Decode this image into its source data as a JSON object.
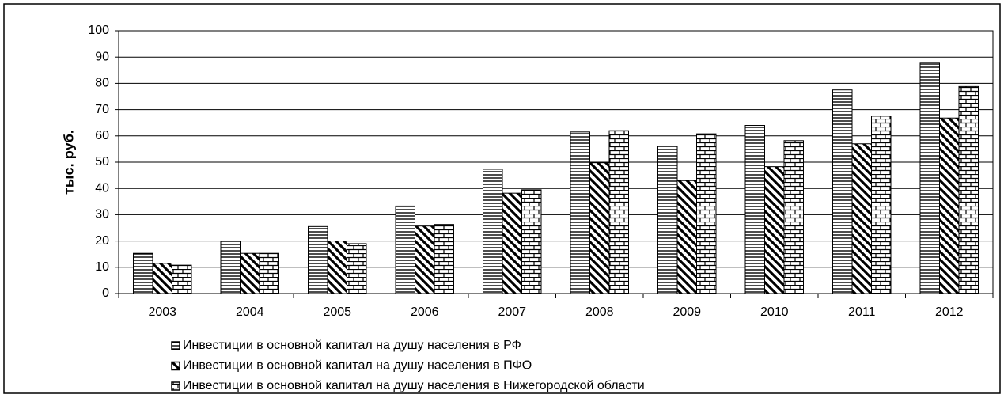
{
  "chart_data": {
    "type": "bar",
    "y_label": "тыс. руб.",
    "categories": [
      "2003",
      "2004",
      "2005",
      "2006",
      "2007",
      "2008",
      "2009",
      "2010",
      "2011",
      "2012"
    ],
    "series": [
      {
        "name": "Инвестиции в основной капитал на душу населения в РФ",
        "color": "#000000",
        "pattern": "horizontal",
        "values": [
          15.3,
          20,
          25.5,
          33.3,
          47.3,
          61.5,
          56,
          64,
          77.5,
          88
        ]
      },
      {
        "name": "Инвестиции в основной капитал на душу населения в ПФО",
        "color": "#000000",
        "pattern": "diagonal",
        "values": [
          11.5,
          15.3,
          20,
          25.7,
          38.2,
          49.8,
          43,
          48.3,
          57,
          66.8
        ]
      },
      {
        "name": "Инвестиции в основной капитал на душу населения в Нижегородской области",
        "color": "#000000",
        "pattern": "brick",
        "values": [
          10.8,
          15.3,
          19,
          26.3,
          39.5,
          62,
          60.8,
          58.2,
          67.5,
          78.8
        ]
      }
    ],
    "ylim": [
      0,
      100
    ],
    "yticks": [
      0,
      10,
      20,
      30,
      40,
      50,
      60,
      70,
      80,
      90,
      100
    ],
    "grid": true,
    "legend": "bottom"
  }
}
